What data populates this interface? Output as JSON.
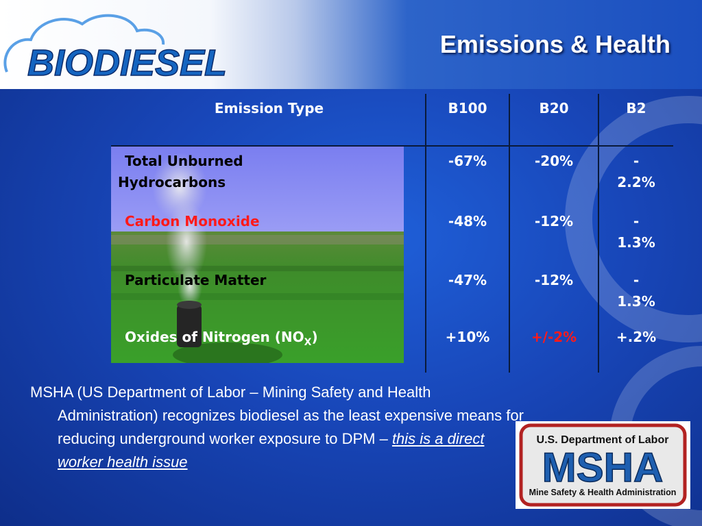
{
  "header": {
    "logo_text": "BIODIESEL",
    "title": "Emissions & Health"
  },
  "table": {
    "columns": [
      "Emission Type",
      "B100",
      "B20",
      "B2"
    ],
    "rows": [
      {
        "label": "Total Unburned Hydrocarbons",
        "label_line1": "Total Unburned",
        "label_line2": "Hydrocarbons",
        "b100": "-67%",
        "b20": "-20%",
        "b2_line1": "-",
        "b2_line2": "2.2%"
      },
      {
        "label": "Carbon Monoxide",
        "b100": "-48%",
        "b20": "-12%",
        "b2_line1": "-",
        "b2_line2": "1.3%"
      },
      {
        "label": "Particulate Matter",
        "b100": "-47%",
        "b20": "-12%",
        "b2_line1": "-",
        "b2_line2": "1.3%"
      },
      {
        "label_prefix": "Oxides of Nitrogen (NO",
        "label_subscript": "X",
        "label_suffix": ")",
        "b100": "+10%",
        "b20": "+/-2%",
        "b2": "+.2%"
      }
    ]
  },
  "body": {
    "text": "MSHA (US Department of Labor – Mining Safety and Health Administration) recognizes biodiesel as the least expensive means for reducing underground worker exposure to DPM – ",
    "emphasis": "this is a direct worker health issue"
  },
  "msha_logo": {
    "top_text": "U.S. Department of Labor",
    "main_text": "MSHA",
    "bottom_text": "Mine Safety & Health Administration"
  },
  "colors": {
    "background": "#1a4ec0",
    "highlight_red": "#ff1a1a",
    "logo_blue": "#1565c0"
  }
}
